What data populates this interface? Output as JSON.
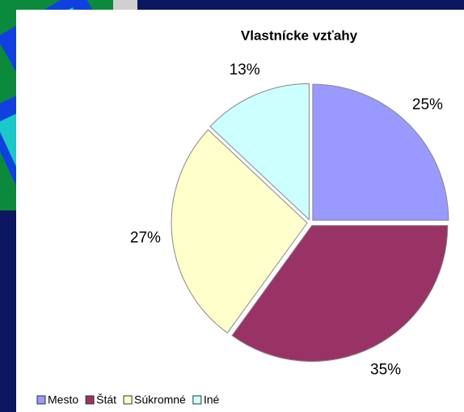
{
  "chart_data": {
    "type": "pie",
    "title": "Vlastnícke vzťahy",
    "categories": [
      "Mesto",
      "Štát",
      "Súkromné",
      "Iné"
    ],
    "values": [
      25,
      35,
      27,
      13
    ],
    "value_labels": [
      "25%",
      "35%",
      "27%",
      "13%"
    ],
    "colors": [
      "#9999ff",
      "#993366",
      "#ffffcc",
      "#ccffff"
    ],
    "legend": "bottom"
  }
}
